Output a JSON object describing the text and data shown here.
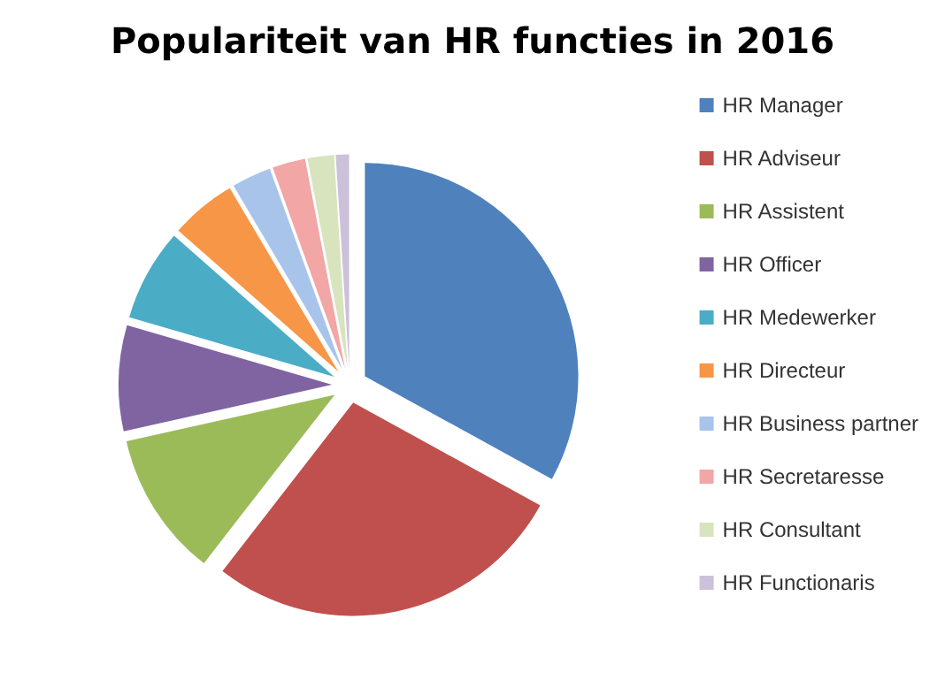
{
  "chart_data": {
    "type": "pie",
    "title": "Populariteit van HR functies in 2016",
    "categories": [
      "HR Manager",
      "HR Adviseur",
      "HR Assistent",
      "HR Officer",
      "HR Medewerker",
      "HR Directeur",
      "HR Business partner",
      "HR Secretaresse",
      "HR Consultant",
      "HR Functionaris"
    ],
    "values": [
      33,
      27.5,
      11,
      8,
      7,
      5,
      3,
      2.5,
      2,
      1
    ],
    "colors": [
      "#4f81bd",
      "#c0504d",
      "#9bbb59",
      "#8064a2",
      "#4bacc6",
      "#f79646",
      "#a9c4eb",
      "#f2a6a5",
      "#d7e4bd",
      "#ccc1da"
    ],
    "legend": "right"
  }
}
